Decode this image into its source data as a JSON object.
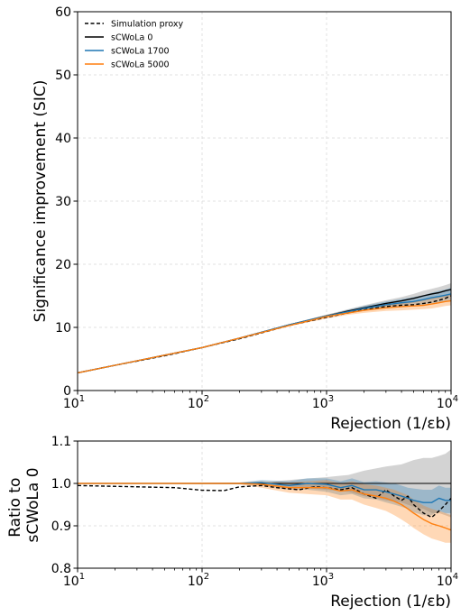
{
  "chart_data": [
    {
      "type": "line",
      "ylabel": "Significance improvement (SIC)",
      "xlabel": "Rejection (1/εb)",
      "xscale": "log",
      "xlim": [
        10,
        10000
      ],
      "ylim": [
        0,
        60
      ],
      "yticks": [
        0,
        10,
        20,
        30,
        40,
        50,
        60
      ],
      "xticks": [
        {
          "base": "10",
          "exp": "1"
        },
        {
          "base": "10",
          "exp": "2"
        },
        {
          "base": "10",
          "exp": "3"
        },
        {
          "base": "10",
          "exp": "4"
        }
      ],
      "grid": true,
      "legend_position": "top-left",
      "series": [
        {
          "name": "Simulation proxy",
          "color": "#000000",
          "style": "dashed",
          "x": [
            10,
            20,
            50,
            100,
            200,
            500,
            1000,
            1500,
            2000,
            3000,
            4000,
            5000,
            6000,
            7000,
            8000,
            9000,
            10000
          ],
          "y": [
            2.8,
            4.0,
            5.5,
            6.8,
            8.2,
            10.3,
            11.6,
            12.3,
            12.8,
            13.3,
            13.5,
            13.6,
            13.8,
            14.0,
            14.3,
            14.6,
            15.0
          ]
        },
        {
          "name": "sCWoLa 0",
          "color": "#000000",
          "style": "solid",
          "x": [
            10,
            20,
            50,
            100,
            200,
            500,
            1000,
            1500,
            2000,
            3000,
            4000,
            5000,
            6000,
            7000,
            8000,
            9000,
            10000
          ],
          "y": [
            2.8,
            4.0,
            5.6,
            6.8,
            8.3,
            10.4,
            11.8,
            12.6,
            13.1,
            13.8,
            14.2,
            14.6,
            15.0,
            15.3,
            15.5,
            15.8,
            16.0
          ],
          "band_lo": [
            2.8,
            4.0,
            5.6,
            6.8,
            8.3,
            10.3,
            11.6,
            12.3,
            12.7,
            13.3,
            13.6,
            13.9,
            14.2,
            14.4,
            14.6,
            14.8,
            15.0
          ],
          "band_hi": [
            2.8,
            4.0,
            5.6,
            6.8,
            8.3,
            10.5,
            12.0,
            12.9,
            13.5,
            14.3,
            14.8,
            15.3,
            15.8,
            16.1,
            16.4,
            16.7,
            17.0
          ]
        },
        {
          "name": "sCWoLa 1700",
          "color": "#1f77b4",
          "style": "solid",
          "x": [
            10,
            20,
            50,
            100,
            200,
            500,
            1000,
            1500,
            2000,
            3000,
            4000,
            5000,
            6000,
            7000,
            8000,
            9000,
            10000
          ],
          "y": [
            2.8,
            4.0,
            5.6,
            6.8,
            8.3,
            10.4,
            11.8,
            12.5,
            13.0,
            13.6,
            13.9,
            14.1,
            14.4,
            14.7,
            14.9,
            15.1,
            15.3
          ],
          "band_lo": [
            2.8,
            4.0,
            5.6,
            6.8,
            8.3,
            10.3,
            11.6,
            12.2,
            12.6,
            13.1,
            13.3,
            13.4,
            13.6,
            13.8,
            14.0,
            14.1,
            14.3
          ],
          "band_hi": [
            2.8,
            4.0,
            5.6,
            6.8,
            8.3,
            10.5,
            12.0,
            12.8,
            13.4,
            14.1,
            14.5,
            14.8,
            15.1,
            15.5,
            15.8,
            16.0,
            16.3
          ]
        },
        {
          "name": "sCWoLa 5000",
          "color": "#ff7f0e",
          "style": "solid",
          "x": [
            10,
            20,
            50,
            100,
            200,
            500,
            1000,
            1500,
            2000,
            3000,
            4000,
            5000,
            6000,
            7000,
            8000,
            9000,
            10000
          ],
          "y": [
            2.8,
            4.0,
            5.6,
            6.8,
            8.3,
            10.3,
            11.7,
            12.3,
            12.7,
            13.1,
            13.3,
            13.4,
            13.5,
            13.7,
            13.9,
            14.1,
            14.2
          ],
          "band_lo": [
            2.8,
            4.0,
            5.6,
            6.8,
            8.3,
            10.2,
            11.4,
            12.0,
            12.3,
            12.6,
            12.7,
            12.8,
            12.9,
            13.0,
            13.2,
            13.4,
            13.5
          ],
          "band_hi": [
            2.8,
            4.0,
            5.6,
            6.8,
            8.3,
            10.4,
            12.0,
            12.7,
            13.1,
            13.6,
            13.9,
            14.1,
            14.3,
            14.6,
            14.8,
            15.0,
            15.2
          ]
        }
      ]
    },
    {
      "type": "line",
      "ylabel": [
        "Ratio to",
        "sCWoLa 0"
      ],
      "xlabel": "Rejection (1/εb)",
      "xscale": "log",
      "xlim": [
        10,
        10000
      ],
      "ylim": [
        0.8,
        1.1
      ],
      "yticks": [
        0.8,
        0.9,
        1.0,
        1.1
      ],
      "ytick_labels": [
        "0.8",
        "0.9",
        "1.0",
        "1.1"
      ],
      "xticks": [
        {
          "base": "10",
          "exp": "1"
        },
        {
          "base": "10",
          "exp": "2"
        },
        {
          "base": "10",
          "exp": "3"
        },
        {
          "base": "10",
          "exp": "4"
        }
      ],
      "grid": true,
      "series": [
        {
          "name": "Simulation proxy",
          "color": "#000000",
          "style": "dashed",
          "x": [
            10,
            30,
            60,
            100,
            150,
            200,
            300,
            400,
            600,
            800,
            1000,
            1300,
            1600,
            2000,
            2500,
            3000,
            3500,
            4000,
            4500,
            5000,
            6000,
            7000,
            8000,
            9000,
            10000
          ],
          "y": [
            0.995,
            0.992,
            0.99,
            0.984,
            0.983,
            0.992,
            0.995,
            0.99,
            0.985,
            0.992,
            0.99,
            0.985,
            0.99,
            0.975,
            0.965,
            0.985,
            0.97,
            0.96,
            0.97,
            0.95,
            0.93,
            0.92,
            0.935,
            0.95,
            0.965
          ]
        },
        {
          "name": "sCWoLa 0",
          "color": "#000000",
          "style": "solid",
          "x": [
            10,
            10000
          ],
          "y": [
            1.0,
            1.0
          ],
          "band_x": [
            10,
            300,
            600,
            1000,
            1500,
            2000,
            3000,
            4000,
            5000,
            6000,
            7000,
            8000,
            9000,
            10000
          ],
          "band_lo": [
            1.0,
            0.998,
            0.99,
            0.985,
            0.98,
            0.97,
            0.96,
            0.955,
            0.945,
            0.94,
            0.93,
            0.93,
            0.925,
            0.92
          ],
          "band_hi": [
            1.0,
            1.002,
            1.01,
            1.015,
            1.02,
            1.03,
            1.04,
            1.045,
            1.055,
            1.06,
            1.06,
            1.065,
            1.07,
            1.08
          ]
        },
        {
          "name": "sCWoLa 1700",
          "color": "#1f77b4",
          "style": "solid",
          "x": [
            10,
            200,
            300,
            500,
            700,
            1000,
            1300,
            1600,
            2000,
            2500,
            3000,
            3500,
            4000,
            4500,
            5000,
            6000,
            7000,
            8000,
            9000,
            10000
          ],
          "y": [
            1.0,
            1.0,
            1.002,
            0.995,
            1.0,
            0.998,
            0.99,
            0.995,
            0.985,
            0.985,
            0.98,
            0.975,
            0.97,
            0.965,
            0.96,
            0.955,
            0.955,
            0.965,
            0.96,
            0.96
          ],
          "band_lo": [
            1.0,
            0.998,
            0.995,
            0.985,
            0.985,
            0.98,
            0.972,
            0.975,
            0.965,
            0.962,
            0.955,
            0.95,
            0.945,
            0.94,
            0.932,
            0.925,
            0.925,
            0.935,
            0.93,
            0.93
          ],
          "band_hi": [
            1.0,
            1.002,
            1.008,
            1.005,
            1.012,
            1.012,
            1.005,
            1.012,
            1.003,
            1.005,
            1.002,
            1.0,
            0.995,
            0.99,
            0.988,
            0.985,
            0.985,
            0.995,
            0.99,
            0.99
          ]
        },
        {
          "name": "sCWoLa 5000",
          "color": "#ff7f0e",
          "style": "solid",
          "x": [
            10,
            200,
            300,
            500,
            700,
            1000,
            1300,
            1600,
            2000,
            2500,
            3000,
            3500,
            4000,
            4500,
            5000,
            6000,
            7000,
            8000,
            9000,
            10000
          ],
          "y": [
            1.0,
            1.0,
            0.998,
            0.99,
            0.99,
            0.99,
            0.982,
            0.985,
            0.975,
            0.97,
            0.965,
            0.958,
            0.95,
            0.94,
            0.93,
            0.915,
            0.905,
            0.9,
            0.895,
            0.89
          ],
          "band_lo": [
            1.0,
            0.998,
            0.99,
            0.978,
            0.975,
            0.972,
            0.962,
            0.962,
            0.95,
            0.942,
            0.935,
            0.925,
            0.915,
            0.905,
            0.895,
            0.88,
            0.87,
            0.865,
            0.86,
            0.86
          ],
          "band_hi": [
            1.0,
            1.002,
            1.005,
            1.002,
            1.005,
            1.008,
            1.0,
            1.005,
            0.998,
            0.995,
            0.99,
            0.985,
            0.978,
            0.972,
            0.962,
            0.948,
            0.94,
            0.935,
            0.93,
            0.925
          ]
        }
      ]
    }
  ]
}
